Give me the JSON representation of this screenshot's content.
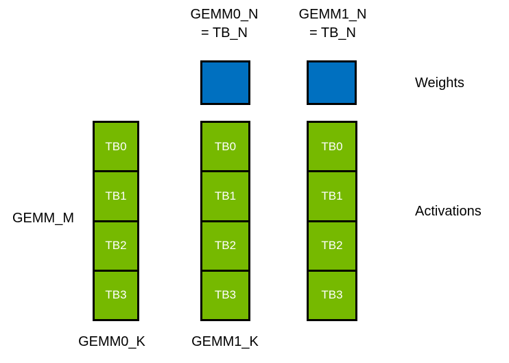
{
  "diagram": {
    "colors": {
      "weights_fill": "#0070C0",
      "activations_fill": "#76B900",
      "border": "#000000",
      "label_text": "#000000",
      "cell_text": "#ffffff"
    },
    "top_labels": [
      {
        "line1": "GEMM0_N",
        "line2": "= TB_N"
      },
      {
        "line1": "GEMM1_N",
        "line2": "= TB_N"
      }
    ],
    "side_labels": {
      "weights": "Weights",
      "gemm_m": "GEMM_M",
      "activations": "Activations"
    },
    "columns": [
      {
        "cells": [
          "TB0",
          "TB1",
          "TB2",
          "TB3"
        ]
      },
      {
        "cells": [
          "TB0",
          "TB1",
          "TB2",
          "TB3"
        ]
      },
      {
        "cells": [
          "TB0",
          "TB1",
          "TB2",
          "TB3"
        ]
      }
    ],
    "bottom_labels": [
      "GEMM0_K",
      "GEMM1_K"
    ]
  }
}
